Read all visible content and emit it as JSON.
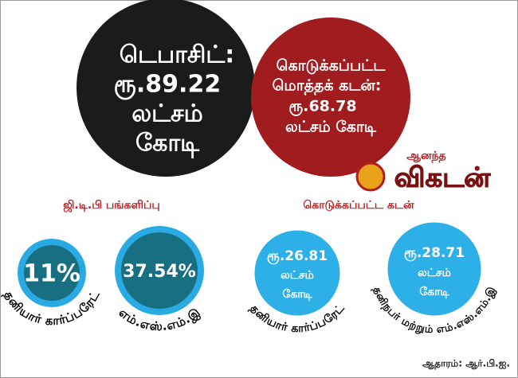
{
  "deposit_circle": {
    "lines": [
      "டெபாசிட்:",
      "ரூ.89.22",
      "லட்சம்",
      "கோடி"
    ]
  },
  "loan_circle": {
    "lines": [
      "கொடுக்கப்பட்ட",
      "மொத்தக் கடன்:",
      "ரூ.68.78",
      "லட்சம் கோடி"
    ]
  },
  "logo": {
    "small": "ஆனந்த",
    "large": "விகடன்"
  },
  "gdp_share": {
    "title": "ஜி.டி.பி பங்களிப்பு",
    "items": [
      {
        "value": "11%",
        "label": "தனியார் கார்ப்பரேட்"
      },
      {
        "value": "37.54%",
        "label": "எம்.எஸ்.எம்.இ"
      }
    ]
  },
  "loans_given": {
    "title": "கொடுக்கப்பட்ட கடன்",
    "items": [
      {
        "lines": [
          "ரூ.26.81",
          "லட்சம்",
          "கோடி"
        ],
        "label": "தனியார் கார்ப்பரேட்"
      },
      {
        "lines": [
          "ரூ.28.71",
          "லட்சம்",
          "கோடி"
        ],
        "label": "தனிநபர் மற்றும் எம்.எஸ்.எம்.இ"
      }
    ]
  },
  "source": "ஆதாரம்: ஆர்.பி.ஐ."
}
